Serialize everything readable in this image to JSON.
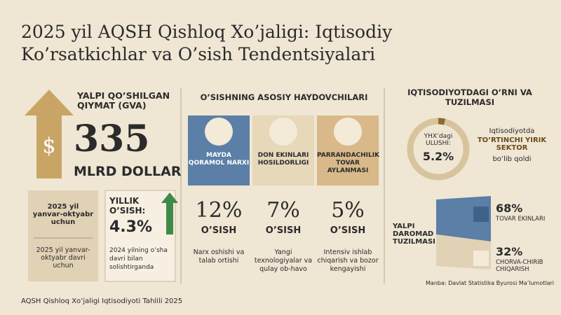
{
  "title": "2025 yil AQSH Qishloq Xo’jaligi: Iqtisodiy Ko’rsatkichlar va O’sish Tendentsiyalari",
  "gva": {
    "header": "YALPI QO’SHILGAN QIYMAT (GVA)",
    "value": "335",
    "unit": "MLRD DOLLAR",
    "period_title": "2025 yil yanvar-oktyabr uchun",
    "period_note": "2025 yil yanvar-oktyabr davri uchun",
    "growth_label": "YILLIK O’SISH:",
    "growth_value": "4.3%",
    "growth_note": "2024 yilning o’sha davri bilan solishtirganda"
  },
  "drivers": {
    "header": "O’SISHNING ASOSIY HAYDOVCHILARI",
    "items": [
      {
        "label": "MAYDA QORAMOL NARXI",
        "value": "12%",
        "growth": "O’SISH",
        "note": "Narx oshishi va talab ortishi"
      },
      {
        "label": "DON EKINLARI HOSILDORLIGI",
        "value": "7%",
        "growth": "O’SISH",
        "note": "Yangi texnologiyalar va qulay ob-havo"
      },
      {
        "label": "PARRANDACHILIK TOVAR AYLANMASI",
        "value": "5%",
        "growth": "O’SISH",
        "note": "Intensiv ishlab chiqarish va bozor kengayishi"
      }
    ]
  },
  "economy": {
    "header": "IQTISODIYOTDAGI O’RNI VA TUZILMASI",
    "share_label": "YHX’dagi ULUSHI:",
    "share_value": "5.2%",
    "rank_pre": "Iqtisodiyotda",
    "rank": "TO’RTINCHI YIRIK SEKTOR",
    "rank_post": "bo’lib qoldi",
    "income_title": "YALPI DAROMAD TUZILMASI",
    "income": [
      {
        "value": "68%",
        "label": "TOVAR EKINLARI"
      },
      {
        "value": "32%",
        "label": "CHORVA-CHIRIB CHIQARISH"
      }
    ],
    "source": "Manba: Davlat Statistika Byurosi Ma’lumotlari"
  },
  "footer": "AQSH Qishloq Xo’jaligi Iqtisodiyoti Tahlili 2025"
}
